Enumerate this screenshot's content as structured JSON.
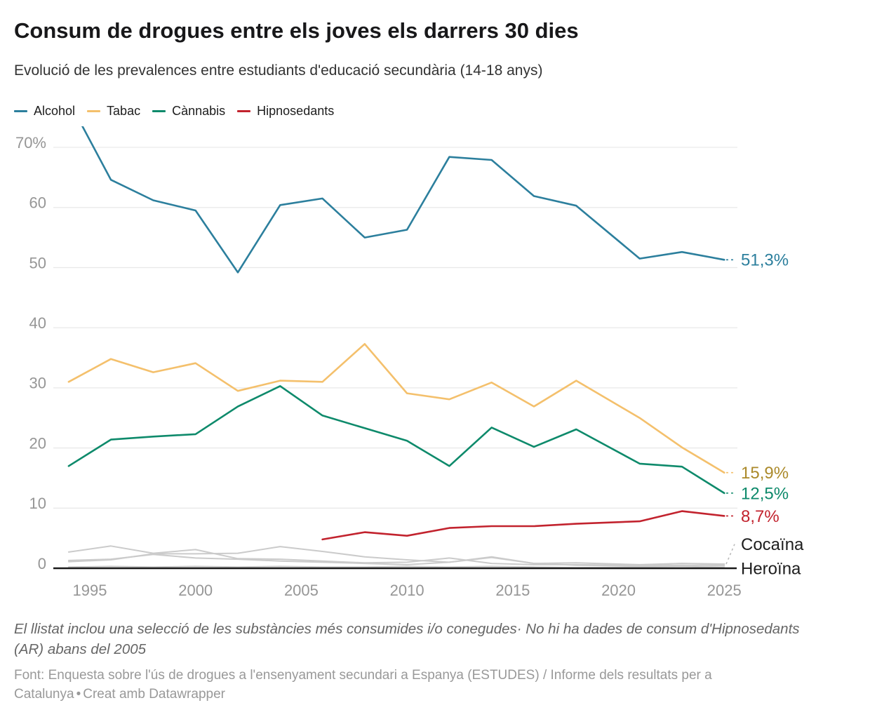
{
  "chart_data": {
    "type": "line",
    "title": "Consum de drogues entre els joves els darrers 30 dies",
    "subtitle": "Evolució de les prevalences entre estudiants d'educació secundària (14-18 anys)",
    "x": [
      1994,
      1996,
      1998,
      2000,
      2002,
      2004,
      2006,
      2008,
      2010,
      2012,
      2014,
      2016,
      2018,
      2021,
      2023,
      2025
    ],
    "ylim": [
      0,
      73.5
    ],
    "grid": "horizontal-light",
    "legend_position": "top",
    "yticks": [
      {
        "value": 70,
        "label": "70%"
      },
      {
        "value": 60,
        "label": "60"
      },
      {
        "value": 50,
        "label": "50"
      },
      {
        "value": 40,
        "label": "40"
      },
      {
        "value": 30,
        "label": "30"
      },
      {
        "value": 20,
        "label": "20"
      },
      {
        "value": 10,
        "label": "10"
      },
      {
        "value": 0,
        "label": "0"
      }
    ],
    "xticks": [
      {
        "value": 1995,
        "label": "1995"
      },
      {
        "value": 2000,
        "label": "2000"
      },
      {
        "value": 2005,
        "label": "2005"
      },
      {
        "value": 2010,
        "label": "2010"
      },
      {
        "value": 2015,
        "label": "2015"
      },
      {
        "value": 2020,
        "label": "2020"
      },
      {
        "value": 2025,
        "label": "2025"
      }
    ],
    "series": [
      {
        "name": "",
        "color": "#cbcbcb",
        "width": 2,
        "values": [
          2.7,
          3.7,
          2.5,
          3.1,
          1.6,
          1.5,
          1.2,
          0.9,
          1.0,
          1.7,
          0.8,
          0.6,
          0.6,
          0.5,
          0.8,
          0.6
        ]
      },
      {
        "name": "",
        "color": "#cbcbcb",
        "width": 2,
        "values": [
          1.3,
          1.5,
          2.3,
          1.7,
          1.5,
          1.2,
          1.0,
          0.8,
          0.6,
          1.0,
          1.9,
          0.8,
          0.5,
          0.4,
          0.5,
          0.4
        ]
      },
      {
        "name": "Cocaïna",
        "color": "#cbcbcb",
        "width": 2,
        "end_label": "Cocaïna",
        "end_label_color": "#1d1d1d",
        "connector_color": "#bbbbbb",
        "label_y": 4.0,
        "values": [
          1.1,
          1.4,
          2.4,
          2.4,
          2.5,
          3.6,
          2.8,
          1.9,
          1.4,
          1.0,
          1.8,
          0.8,
          0.9,
          0.6,
          0.8,
          0.7
        ]
      },
      {
        "name": "Heroïna",
        "color": "#cbcbcb",
        "width": 2,
        "end_label": "Heroïna",
        "end_label_color": "#1d1d1d",
        "connector": false,
        "label_y": 0,
        "values": [
          0.2,
          0.3,
          0.2,
          0.3,
          0.2,
          0.3,
          0.2,
          0.2,
          0.3,
          0.2,
          0.3,
          0.2,
          0.1,
          0.2,
          0.3,
          0.1
        ]
      },
      {
        "name": "Tabac",
        "color": "#f4c06c",
        "width": 2.6,
        "in_legend": true,
        "end_label": "15,9%",
        "end_label_color": "#ab8a2b",
        "values": [
          31.0,
          34.8,
          32.6,
          34.1,
          29.5,
          31.2,
          31.0,
          37.3,
          29.1,
          28.1,
          30.9,
          26.9,
          31.2,
          25.0,
          20.1,
          15.9
        ]
      },
      {
        "name": "Cànnabis",
        "color": "#0e8a6b",
        "width": 2.6,
        "in_legend": true,
        "end_label": "12,5%",
        "values": [
          17.0,
          21.4,
          21.9,
          22.3,
          26.9,
          30.3,
          25.4,
          23.3,
          21.2,
          17.0,
          23.4,
          20.2,
          23.1,
          17.4,
          16.9,
          12.5
        ]
      },
      {
        "name": "Hipnosedants",
        "color": "#c2232e",
        "width": 2.6,
        "in_legend": true,
        "end_label": "8,7%",
        "values": [
          null,
          null,
          null,
          null,
          null,
          null,
          4.8,
          6.0,
          5.4,
          6.7,
          7.0,
          7.0,
          7.4,
          7.8,
          9.5,
          8.7
        ]
      },
      {
        "name": "Alcohol",
        "color": "#2c7f9d",
        "width": 2.6,
        "in_legend": true,
        "end_label": "51,3%",
        "values": [
          77.8,
          64.6,
          61.2,
          59.5,
          49.2,
          60.4,
          61.5,
          55.0,
          56.3,
          68.4,
          67.9,
          61.9,
          60.3,
          51.5,
          52.6,
          51.3
        ]
      }
    ],
    "legend_order": [
      "Alcohol",
      "Tabac",
      "Cànnabis",
      "Hipnosedants"
    ],
    "footnote": "El llistat inclou una selecció de les substàncies més consumides i/o conegudes· No hi ha dades de consum d'Hipnosedants (AR) abans del 2005",
    "source": "Font: Enquesta sobre l'ús de drogues a l'ensenyament secundari a Espanya (ESTUDES) / Informe dels resultats per a Catalunya",
    "separator": "•",
    "byline": "Creat amb Datawrapper",
    "colors": {
      "axis_line": "#1a1a1a",
      "gridline": "#e9e9e9",
      "tick_label": "#969696",
      "title": "#18181a",
      "subtitle": "#333333",
      "footnote": "#666666",
      "source": "#999999"
    }
  }
}
